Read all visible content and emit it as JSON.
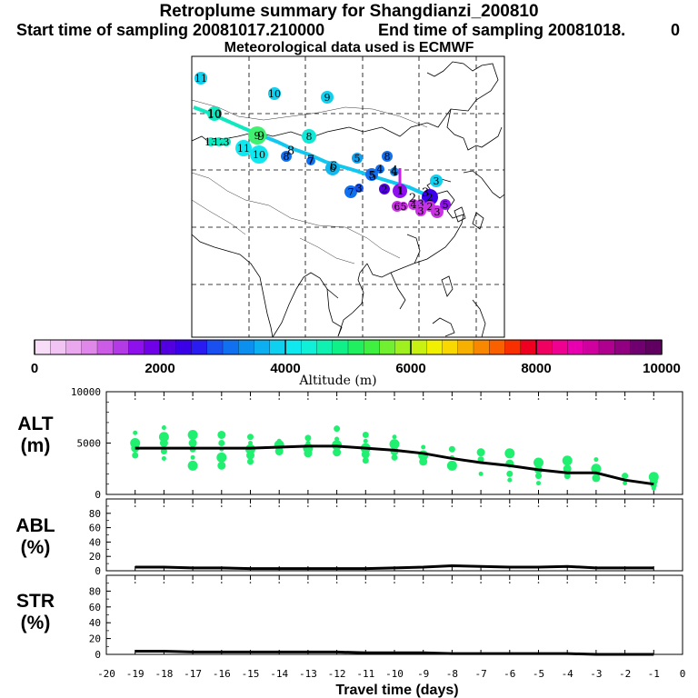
{
  "header": {
    "title": "Retroplume summary for Shangdianzi_200810",
    "start": "Start time of sampling 20081017.210000",
    "end": "End time of sampling 20081018.",
    "end_suffix": "0",
    "met": "Meteorological data used is ECMWF"
  },
  "colorbar": {
    "colors": [
      "#f8ddf8",
      "#f2c4f4",
      "#eaa8ee",
      "#e088ea",
      "#cc5ce6",
      "#b43ae6",
      "#8e10ec",
      "#7000e8",
      "#5200e0",
      "#3a00e8",
      "#2a1cf0",
      "#1a50f0",
      "#1070f0",
      "#0c90f0",
      "#0cb0f0",
      "#10d0f0",
      "#10e8f0",
      "#10f0d8",
      "#10f0b0",
      "#10f088",
      "#20f060",
      "#40f040",
      "#70f030",
      "#a0f020",
      "#c8f010",
      "#f0f000",
      "#f8d800",
      "#f8b000",
      "#f88800",
      "#f86000",
      "#f83000",
      "#f00020",
      "#f00060",
      "#f00090",
      "#e800b0",
      "#d000a0",
      "#b00090",
      "#900080",
      "#700070",
      "#600060"
    ],
    "tick_labels": [
      "0",
      "2000",
      "4000",
      "6000",
      "8000",
      "10000"
    ],
    "label": "Altitude (m)"
  },
  "map": {
    "markers": [
      {
        "label": "11",
        "color": "#10d0f0"
      },
      {
        "label": "10",
        "color": "#10d0f0"
      },
      {
        "label": "9",
        "color": "#10d0f0"
      },
      {
        "label": "10",
        "color": "#10e8c0"
      },
      {
        "label": "9",
        "color": "#40f070"
      },
      {
        "label": "8",
        "color": "#10e8d8"
      },
      {
        "label": "13",
        "color": "#10e8c0"
      },
      {
        "label": "12",
        "color": "#10e8c0"
      },
      {
        "label": "3",
        "color": "#10e8c0"
      },
      {
        "label": "11",
        "color": "#10e8f0"
      },
      {
        "label": "10",
        "color": "#10e8f0"
      },
      {
        "label": "8",
        "color": "#1070f0"
      },
      {
        "label": "7",
        "color": "#1070f0"
      },
      {
        "label": "6",
        "color": "#10b8f0"
      },
      {
        "label": "5",
        "color": "#10a0f0"
      },
      {
        "label": "8",
        "color": "#1070f0"
      },
      {
        "label": "5",
        "color": "#1070f0"
      },
      {
        "label": "4",
        "color": "#1070f0"
      },
      {
        "label": "4",
        "color": "#1090f0"
      },
      {
        "label": "3",
        "color": "#10d0f0"
      },
      {
        "label": "7",
        "color": "#1070f0"
      },
      {
        "label": "3",
        "color": "#1050f0"
      },
      {
        "label": "2",
        "color": "#5200e0"
      },
      {
        "label": "1",
        "color": "#8e10ec"
      },
      {
        "label": "2",
        "color": "#3a00e8"
      },
      {
        "label": "6",
        "color": "#cc30e6"
      },
      {
        "label": "5",
        "color": "#cc30e6"
      },
      {
        "label": "4",
        "color": "#cc30e6"
      },
      {
        "label": "3",
        "color": "#b43ae6"
      },
      {
        "label": "2",
        "color": "#cc30e6"
      },
      {
        "label": "3",
        "color": "#cc30e6"
      },
      {
        "label": "5",
        "color": "#8e10ec"
      },
      {
        "label": "3",
        "color": "#cc30e6"
      }
    ]
  },
  "chart_data": [
    {
      "type": "scatter",
      "name": "ALT",
      "ylabel": [
        "ALT",
        "(m)"
      ],
      "xlabel": "Travel time (days)",
      "xlim": [
        -20,
        0
      ],
      "ylim": [
        0,
        10000
      ],
      "ytick_labels": [
        "10000",
        "5000",
        "0"
      ],
      "scatter_color": "#20f070",
      "scatter": [
        [
          -19,
          6000
        ],
        [
          -19,
          5000
        ],
        [
          -19,
          4500
        ],
        [
          -19,
          3800
        ],
        [
          -18,
          6500
        ],
        [
          -18,
          5600
        ],
        [
          -18,
          5000
        ],
        [
          -18,
          4200
        ],
        [
          -18,
          3500
        ],
        [
          -17,
          5800
        ],
        [
          -17,
          5000
        ],
        [
          -17,
          4400
        ],
        [
          -17,
          3600
        ],
        [
          -17,
          2800
        ],
        [
          -16,
          5800
        ],
        [
          -16,
          5000
        ],
        [
          -16,
          4400
        ],
        [
          -16,
          3600
        ],
        [
          -16,
          2800
        ],
        [
          -15,
          5600
        ],
        [
          -15,
          5000
        ],
        [
          -15,
          4400
        ],
        [
          -15,
          3800
        ],
        [
          -15,
          3200
        ],
        [
          -14,
          5200
        ],
        [
          -14,
          4800
        ],
        [
          -14,
          4200
        ],
        [
          -13,
          5500
        ],
        [
          -13,
          5000
        ],
        [
          -13,
          4500
        ],
        [
          -13,
          4000
        ],
        [
          -12,
          6400
        ],
        [
          -12,
          5400
        ],
        [
          -12,
          4800
        ],
        [
          -12,
          4100
        ],
        [
          -11,
          5800
        ],
        [
          -11,
          5200
        ],
        [
          -11,
          4500
        ],
        [
          -11,
          3900
        ],
        [
          -11,
          3300
        ],
        [
          -10,
          5600
        ],
        [
          -10,
          4900
        ],
        [
          -10,
          4200
        ],
        [
          -10,
          3600
        ],
        [
          -9,
          4600
        ],
        [
          -9,
          3800
        ],
        [
          -9,
          3200
        ],
        [
          -8,
          4400
        ],
        [
          -8,
          3600
        ],
        [
          -8,
          2800
        ],
        [
          -7,
          4100
        ],
        [
          -7,
          3400
        ],
        [
          -7,
          2000
        ],
        [
          -6,
          4000
        ],
        [
          -6,
          3000
        ],
        [
          -6,
          2000
        ],
        [
          -6,
          1400
        ],
        [
          -5,
          3100
        ],
        [
          -5,
          2400
        ],
        [
          -5,
          1800
        ],
        [
          -5,
          1100
        ],
        [
          -4,
          3300
        ],
        [
          -4,
          2500
        ],
        [
          -4,
          1800
        ],
        [
          -3,
          3400
        ],
        [
          -3,
          2500
        ],
        [
          -3,
          1600
        ],
        [
          -2,
          1800
        ],
        [
          -2,
          1100
        ],
        [
          -1,
          1700
        ],
        [
          -1,
          1300
        ],
        [
          -1,
          900
        ],
        [
          -1,
          600
        ]
      ],
      "x": [
        -19,
        -18,
        -17,
        -16,
        -15,
        -14,
        -13,
        -12,
        -11,
        -10,
        -9,
        -8,
        -7,
        -6,
        -5,
        -4,
        -3,
        -2,
        -1
      ],
      "values": [
        4500,
        4500,
        4500,
        4500,
        4500,
        4600,
        4700,
        4700,
        4500,
        4300,
        4000,
        3500,
        3100,
        2800,
        2400,
        2100,
        2100,
        1400,
        1000
      ]
    },
    {
      "type": "line",
      "name": "ABL",
      "ylabel": [
        "ABL",
        "(%)"
      ],
      "xlim": [
        -20,
        0
      ],
      "ylim": [
        0,
        100
      ],
      "ytick_labels": [
        "80",
        "60",
        "40",
        "20",
        "0"
      ],
      "x": [
        -19,
        -18,
        -17,
        -16,
        -15,
        -14,
        -13,
        -12,
        -11,
        -10,
        -9,
        -8,
        -7,
        -6,
        -5,
        -4,
        -3,
        -2,
        -1
      ],
      "values": [
        5,
        5,
        4,
        4,
        3,
        3,
        3,
        3,
        3,
        4,
        5,
        7,
        6,
        5,
        5,
        6,
        4,
        4,
        4
      ]
    },
    {
      "type": "line",
      "name": "STR",
      "ylabel": [
        "STR",
        "(%)"
      ],
      "xlim": [
        -20,
        0
      ],
      "ylim": [
        0,
        100
      ],
      "ytick_labels": [
        "80",
        "60",
        "40",
        "20",
        "0"
      ],
      "x": [
        -19,
        -18,
        -17,
        -16,
        -15,
        -14,
        -13,
        -12,
        -11,
        -10,
        -9,
        -8,
        -7,
        -6,
        -5,
        -4,
        -3,
        -2,
        -1
      ],
      "values": [
        4,
        4,
        3,
        3,
        3,
        3,
        3,
        3,
        2,
        2,
        2,
        1,
        1,
        1,
        1,
        1,
        0,
        0,
        0
      ]
    }
  ],
  "xaxis": {
    "tick_labels": [
      "-20",
      "-19",
      "-18",
      "-17",
      "-16",
      "-15",
      "-14",
      "-13",
      "-12",
      "-11",
      "-10",
      "-9",
      "-8",
      "-7",
      "-6",
      "-5",
      "-4",
      "-3",
      "-2",
      "-1",
      "0"
    ],
    "label": "Travel time (days)"
  }
}
